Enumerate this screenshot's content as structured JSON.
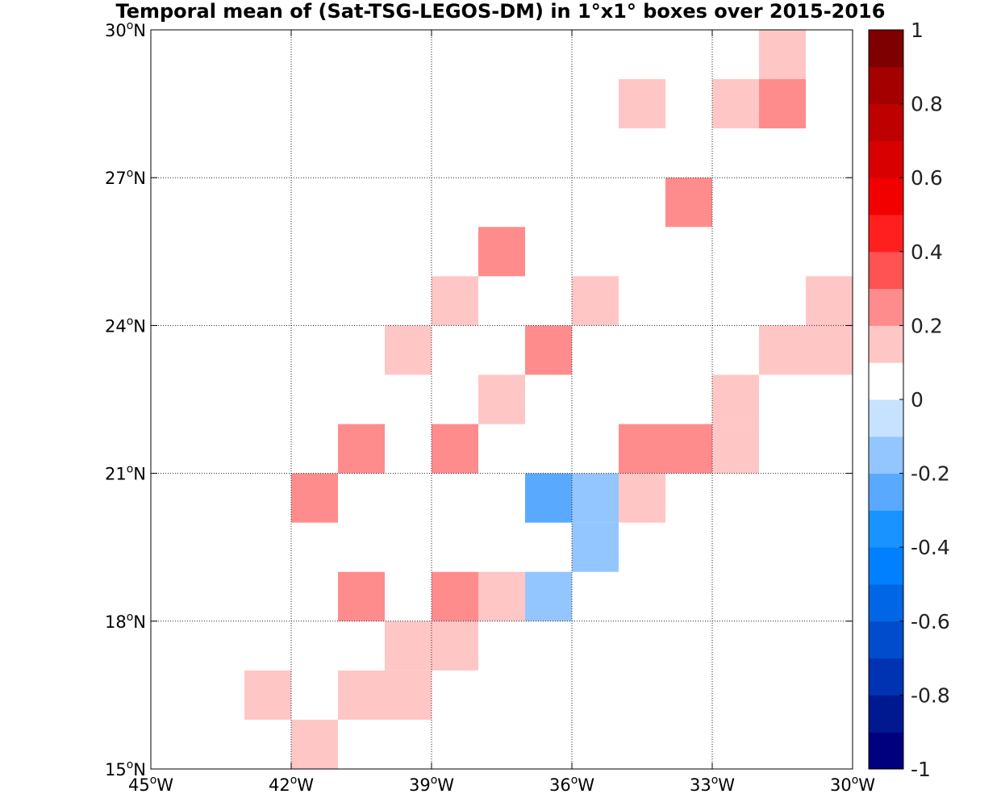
{
  "chart_data": {
    "type": "heatmap",
    "title": "Temporal mean of (Sat-TSG-LEGOS-DM) in 1°x1° boxes over 2015-2016",
    "xlabel": "",
    "ylabel": "",
    "xlim": [
      -45,
      -30
    ],
    "ylim": [
      15,
      30
    ],
    "grid": true,
    "x_ticks": [
      -45,
      -42,
      -39,
      -36,
      -33,
      -30
    ],
    "x_tick_labels": [
      {
        "num": "45",
        "sup": "o",
        "dir": "W"
      },
      {
        "num": "42",
        "sup": "o",
        "dir": "W"
      },
      {
        "num": "39",
        "sup": "o",
        "dir": "W"
      },
      {
        "num": "36",
        "sup": "o",
        "dir": "W"
      },
      {
        "num": "33",
        "sup": "o",
        "dir": "W"
      },
      {
        "num": "30",
        "sup": "o",
        "dir": "W"
      }
    ],
    "y_ticks": [
      15,
      18,
      21,
      24,
      27,
      30
    ],
    "y_tick_labels": [
      {
        "num": "15",
        "sup": "o",
        "dir": "N"
      },
      {
        "num": "18",
        "sup": "o",
        "dir": "N"
      },
      {
        "num": "21",
        "sup": "o",
        "dir": "N"
      },
      {
        "num": "24",
        "sup": "o",
        "dir": "N"
      },
      {
        "num": "27",
        "sup": "o",
        "dir": "N"
      },
      {
        "num": "30",
        "sup": "o",
        "dir": "N"
      }
    ],
    "cells": [
      {
        "lon": -32,
        "lat": 29,
        "value": 0.15
      },
      {
        "lon": -35,
        "lat": 28,
        "value": 0.15
      },
      {
        "lon": -33,
        "lat": 28,
        "value": 0.15
      },
      {
        "lon": -32,
        "lat": 28,
        "value": 0.25
      },
      {
        "lon": -34,
        "lat": 26,
        "value": 0.25
      },
      {
        "lon": -38,
        "lat": 25,
        "value": 0.25
      },
      {
        "lon": -39,
        "lat": 24,
        "value": 0.15
      },
      {
        "lon": -36,
        "lat": 24,
        "value": 0.15
      },
      {
        "lon": -31,
        "lat": 24,
        "value": 0.15
      },
      {
        "lon": -40,
        "lat": 23,
        "value": 0.15
      },
      {
        "lon": -37,
        "lat": 23,
        "value": 0.25
      },
      {
        "lon": -32,
        "lat": 23,
        "value": 0.15
      },
      {
        "lon": -31,
        "lat": 23,
        "value": 0.15
      },
      {
        "lon": -38,
        "lat": 22,
        "value": 0.15
      },
      {
        "lon": -33,
        "lat": 22,
        "value": 0.15
      },
      {
        "lon": -41,
        "lat": 21,
        "value": 0.25
      },
      {
        "lon": -39,
        "lat": 21,
        "value": 0.25
      },
      {
        "lon": -35,
        "lat": 21,
        "value": 0.25
      },
      {
        "lon": -34,
        "lat": 21,
        "value": 0.25
      },
      {
        "lon": -33,
        "lat": 21,
        "value": 0.15
      },
      {
        "lon": -42,
        "lat": 20,
        "value": 0.25
      },
      {
        "lon": -37,
        "lat": 20,
        "value": -0.25
      },
      {
        "lon": -36,
        "lat": 20,
        "value": -0.15
      },
      {
        "lon": -35,
        "lat": 20,
        "value": 0.15
      },
      {
        "lon": -36,
        "lat": 19,
        "value": -0.15
      },
      {
        "lon": -41,
        "lat": 18,
        "value": 0.25
      },
      {
        "lon": -39,
        "lat": 18,
        "value": 0.25
      },
      {
        "lon": -38,
        "lat": 18,
        "value": 0.15
      },
      {
        "lon": -37,
        "lat": 18,
        "value": -0.15
      },
      {
        "lon": -40,
        "lat": 17,
        "value": 0.15
      },
      {
        "lon": -39,
        "lat": 17,
        "value": 0.15
      },
      {
        "lon": -43,
        "lat": 16,
        "value": 0.15
      },
      {
        "lon": -41,
        "lat": 16,
        "value": 0.15
      },
      {
        "lon": -40,
        "lat": 16,
        "value": 0.15
      },
      {
        "lon": -42,
        "lat": 15,
        "value": 0.15
      }
    ],
    "colorbar": {
      "min": -1,
      "max": 1,
      "step": 0.1,
      "colors": [
        "#00007f",
        "#001991",
        "#0033b2",
        "#004ccc",
        "#0066e5",
        "#007fff",
        "#1993ff",
        "#59aaff",
        "#93c6ff",
        "#c6e2ff",
        "#ffffff",
        "#ffffff",
        "#ffc6c6",
        "#ff8c8c",
        "#ff5252",
        "#ff1f1f",
        "#f20000",
        "#d80000",
        "#bf0000",
        "#a50000",
        "#7f0000"
      ],
      "ticks": [
        1,
        0.8,
        0.6,
        0.4,
        0.2,
        0,
        -0.2,
        -0.4,
        -0.6,
        -0.8,
        -1
      ],
      "tick_labels": [
        "1",
        "0.8",
        "0.6",
        "0.4",
        "0.2",
        "0",
        "-0.2",
        "-0.4",
        "-0.6",
        "-0.8",
        "-1"
      ]
    }
  }
}
